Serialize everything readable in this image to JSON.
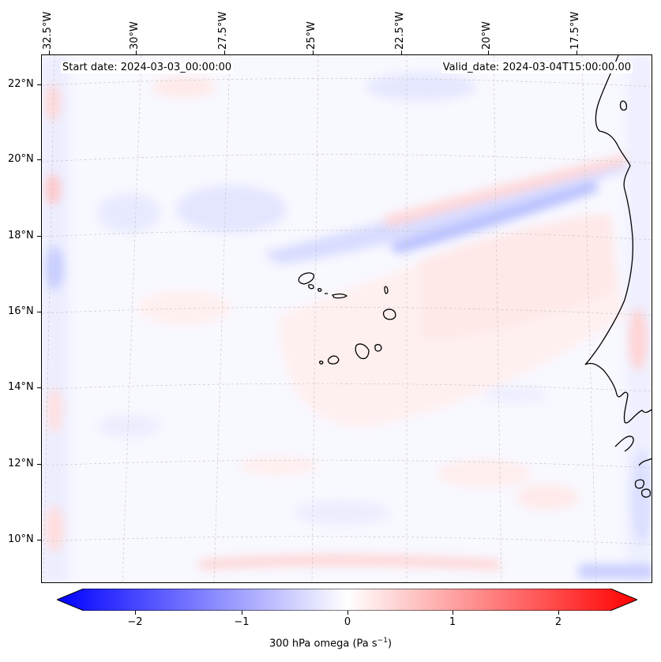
{
  "map": {
    "projection": "Lambert conformal",
    "region": "Cape Verde Islands and West African coast",
    "start_date_label": "Start date: 2024-03-03_00:00:00",
    "valid_date_label": "Valid_date: 2024-03-04T15:00:00.00",
    "longitude_labels": [
      "32.5°W",
      "30°W",
      "27.5°W",
      "25°W",
      "22.5°W",
      "20°W",
      "17.5°W"
    ],
    "latitude_labels": [
      "22°N",
      "20°N",
      "18°N",
      "16°N",
      "14°N",
      "12°N",
      "10°N"
    ],
    "gridlines": true,
    "field": "300 hPa omega",
    "colormap": "bwr",
    "colors": {
      "negative": "#0000ff",
      "zero": "#ffffff",
      "positive": "#ff0000",
      "coastline": "#000000"
    }
  },
  "colorbar": {
    "label_prefix": "300 hPa omega (Pa s",
    "label_exponent": "−1",
    "label_suffix": ")",
    "ticks": [
      "−2",
      "−1",
      "0",
      "1",
      "2"
    ],
    "tick_values": [
      -2,
      -1,
      0,
      1,
      2
    ],
    "range": [
      -2.6,
      2.6
    ],
    "extend": "both"
  }
}
